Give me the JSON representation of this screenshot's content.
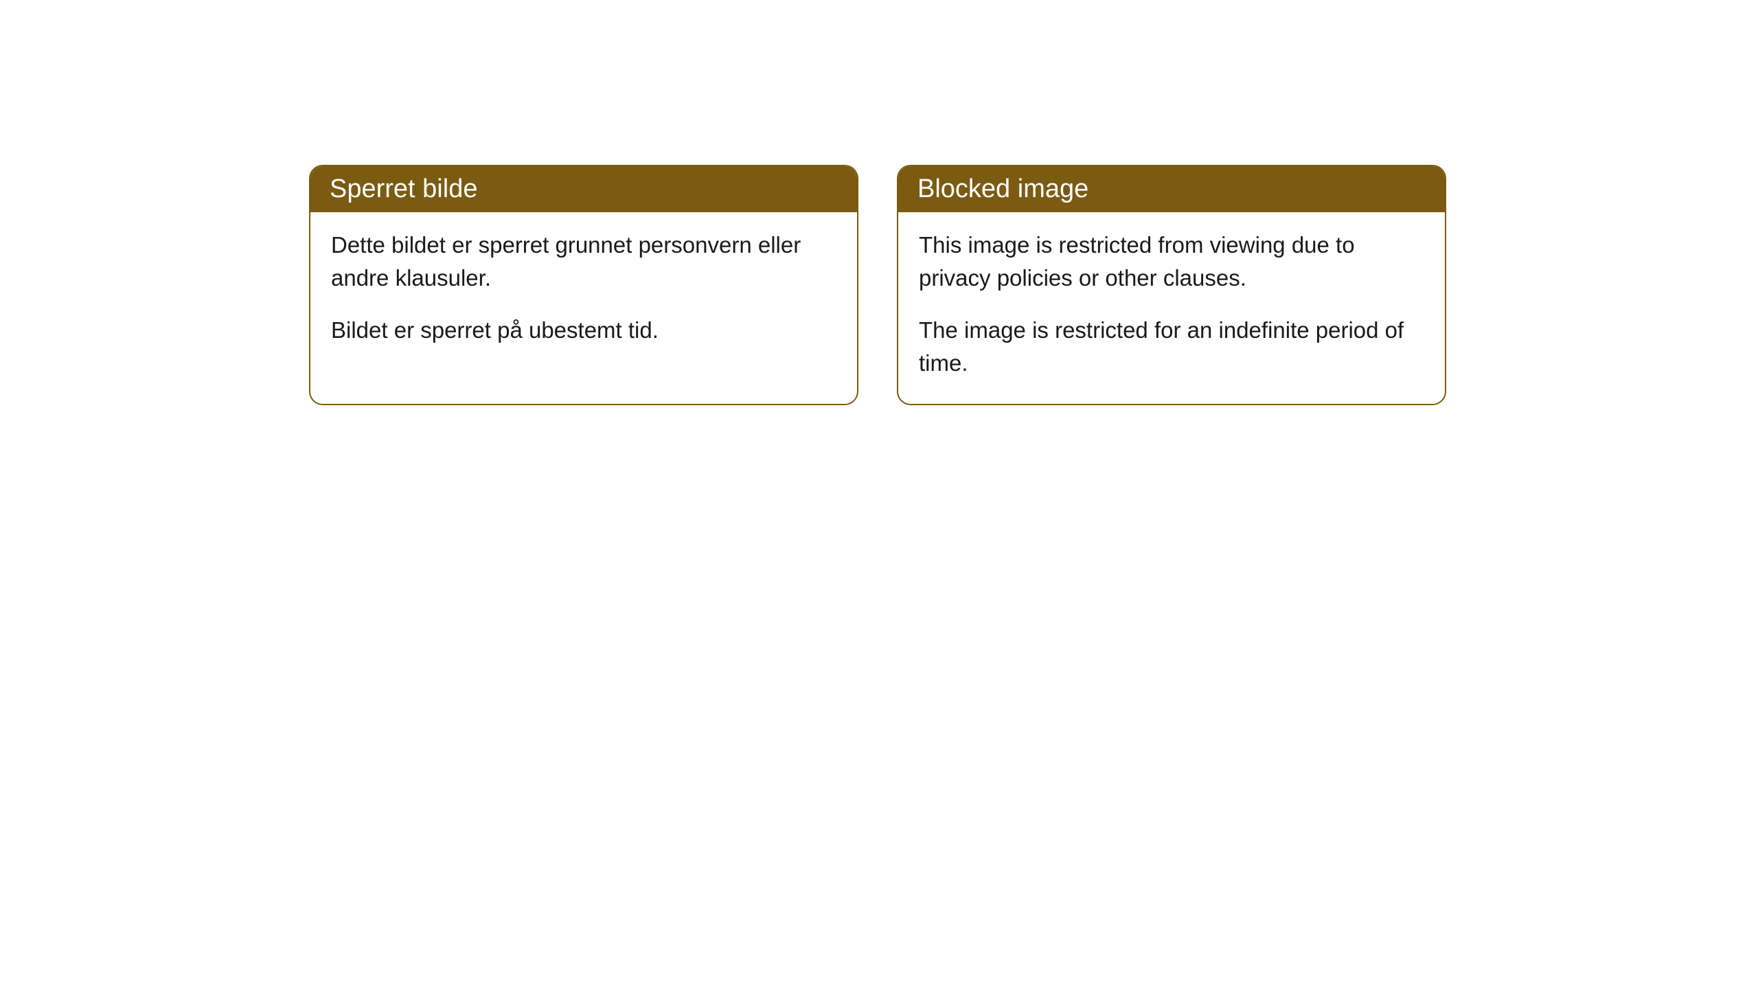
{
  "cards": [
    {
      "title": "Sperret bilde",
      "paragraph1": "Dette bildet er sperret grunnet personvern eller andre klausuler.",
      "paragraph2": "Bildet er sperret på ubestemt tid."
    },
    {
      "title": "Blocked image",
      "paragraph1": "This image is restricted from viewing due to privacy policies or other clauses.",
      "paragraph2": "The image is restricted for an indefinite period of time."
    }
  ],
  "styles": {
    "header_background": "#7a5b11",
    "header_text_color": "#ffffff",
    "border_color": "#7a5b11",
    "body_background": "#ffffff",
    "body_text_color": "#1a1a1a",
    "border_radius": 20,
    "header_fontsize": 38,
    "body_fontsize": 33
  }
}
